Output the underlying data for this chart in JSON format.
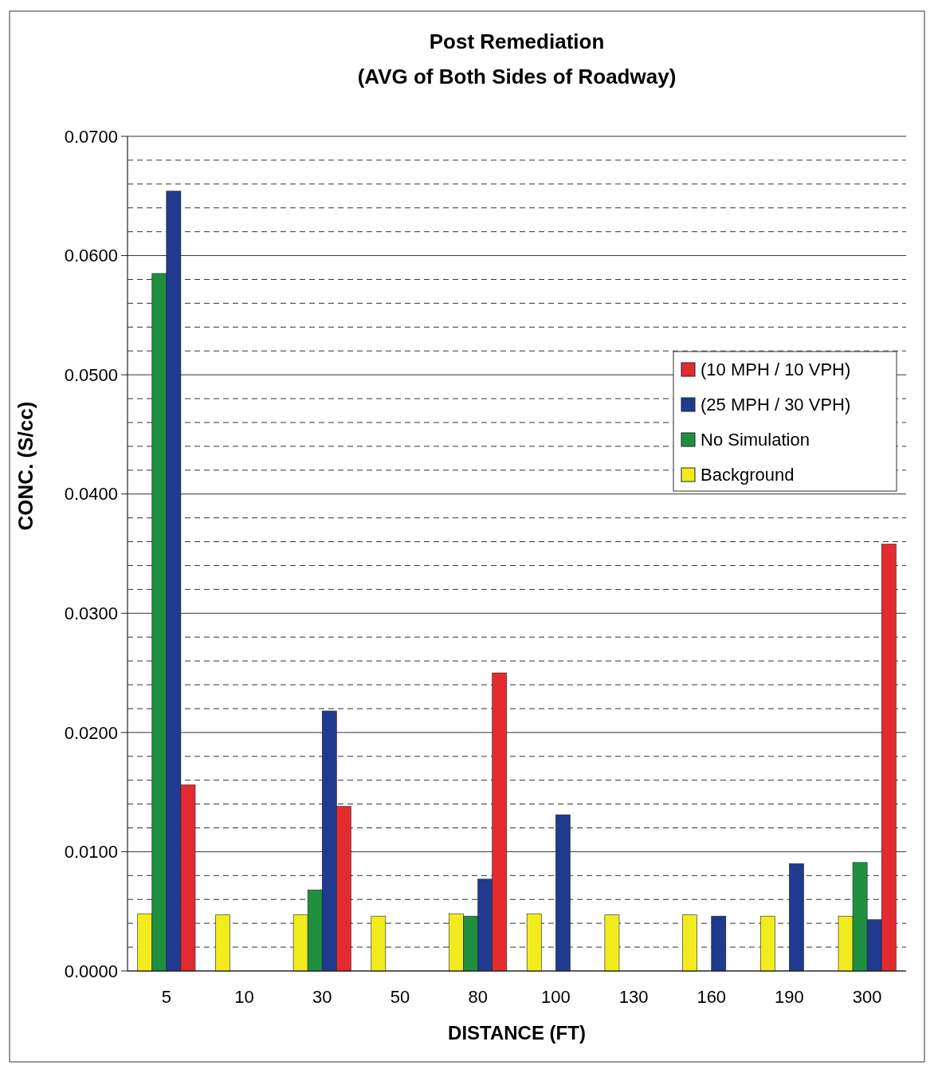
{
  "chart_data": {
    "type": "bar",
    "title": "Post Remediation",
    "subtitle": "(AVG of Both Sides of Roadway)",
    "xlabel": "DISTANCE (FT)",
    "ylabel": "CONC. (S/cc)",
    "categories": [
      "5",
      "10",
      "30",
      "50",
      "80",
      "100",
      "130",
      "160",
      "190",
      "300"
    ],
    "series": [
      {
        "name": "Background",
        "color": "#f2ec1e",
        "values": [
          0.0048,
          0.0047,
          0.0047,
          0.0046,
          0.0048,
          0.0048,
          0.0047,
          0.0047,
          0.0046,
          0.0046
        ]
      },
      {
        "name": "No Simulation",
        "color": "#1e9040",
        "values": [
          0.0585,
          null,
          0.0068,
          null,
          0.0046,
          null,
          null,
          null,
          null,
          0.0091
        ]
      },
      {
        "name": "(25 MPH / 30 VPH)",
        "color": "#1f3a8f",
        "values": [
          0.0654,
          null,
          0.0218,
          null,
          0.0077,
          0.0131,
          null,
          0.0046,
          0.009,
          0.0043
        ]
      },
      {
        "name": "(10 MPH / 10 VPH)",
        "color": "#e32b2f",
        "values": [
          0.0156,
          null,
          0.0138,
          null,
          0.025,
          null,
          null,
          null,
          null,
          0.0358
        ]
      }
    ],
    "ylim": [
      0,
      0.07
    ],
    "yticks": [
      {
        "value": 0,
        "label": "0.0000"
      },
      {
        "value": 0.002,
        "label": null
      },
      {
        "value": 0.004,
        "label": null
      },
      {
        "value": 0.006,
        "label": null
      },
      {
        "value": 0.008,
        "label": null
      },
      {
        "value": 0.01,
        "label": "0.0100"
      },
      {
        "value": 0.012,
        "label": null
      },
      {
        "value": 0.014,
        "label": null
      },
      {
        "value": 0.016,
        "label": null
      },
      {
        "value": 0.018,
        "label": null
      },
      {
        "value": 0.02,
        "label": "0.0200"
      },
      {
        "value": 0.022,
        "label": null
      },
      {
        "value": 0.024,
        "label": null
      },
      {
        "value": 0.026,
        "label": null
      },
      {
        "value": 0.028,
        "label": null
      },
      {
        "value": 0.03,
        "label": "0.0300"
      },
      {
        "value": 0.032,
        "label": null
      },
      {
        "value": 0.034,
        "label": null
      },
      {
        "value": 0.036,
        "label": null
      },
      {
        "value": 0.038,
        "label": null
      },
      {
        "value": 0.04,
        "label": "0.0400"
      },
      {
        "value": 0.042,
        "label": null
      },
      {
        "value": 0.044,
        "label": null
      },
      {
        "value": 0.046,
        "label": null
      },
      {
        "value": 0.048,
        "label": null
      },
      {
        "value": 0.05,
        "label": "0.0500"
      },
      {
        "value": 0.052,
        "label": null
      },
      {
        "value": 0.054,
        "label": null
      },
      {
        "value": 0.056,
        "label": null
      },
      {
        "value": 0.058,
        "label": null
      },
      {
        "value": 0.06,
        "label": "0.0600"
      },
      {
        "value": 0.062,
        "label": null
      },
      {
        "value": 0.064,
        "label": null
      },
      {
        "value": 0.066,
        "label": null
      },
      {
        "value": 0.068,
        "label": null
      },
      {
        "value": 0.07,
        "label": "0.0700"
      }
    ],
    "grid": true,
    "legend": "right"
  }
}
